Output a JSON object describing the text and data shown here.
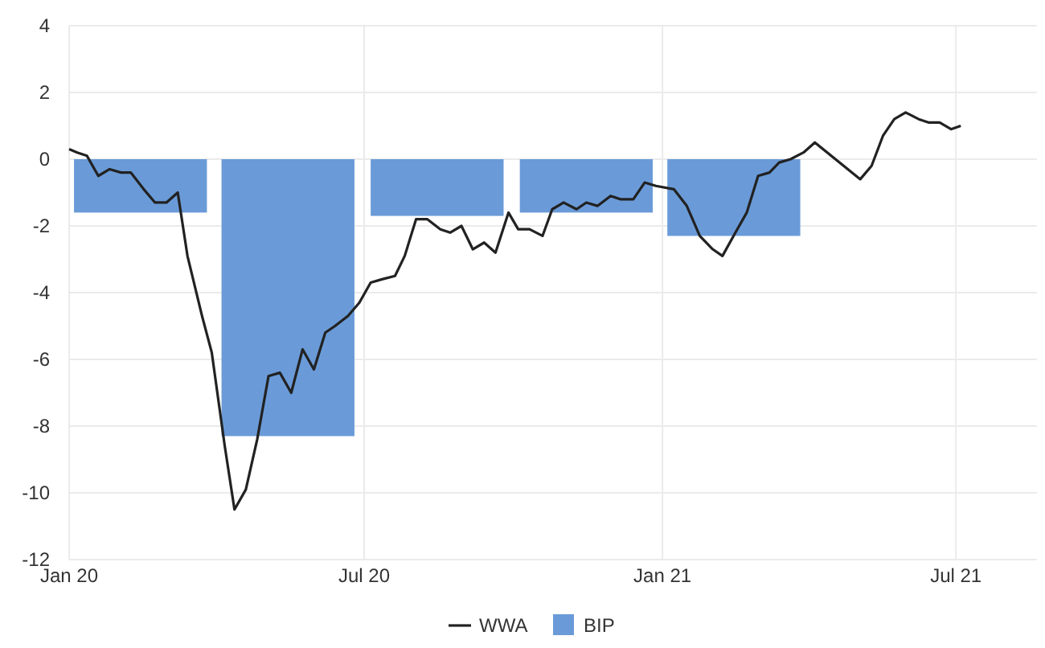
{
  "chart_data": {
    "type": "line",
    "xlim": [
      "2020-01-01",
      "2021-08-20"
    ],
    "xticks": [
      {
        "value": "2020-01-01",
        "label": "Jan 20"
      },
      {
        "value": "2020-07-01",
        "label": "Jul 20"
      },
      {
        "value": "2021-01-01",
        "label": "Jan 21"
      },
      {
        "value": "2021-07-01",
        "label": "Jul 21"
      }
    ],
    "ylim": [
      -12,
      4
    ],
    "yticks": [
      -12,
      -10,
      -8,
      -6,
      -4,
      -2,
      0,
      2,
      4
    ],
    "grid": true,
    "legend": "bottom",
    "series": [
      {
        "name": "WWA",
        "color": "#222222",
        "x": [
          "2020-01-01",
          "2020-01-06",
          "2020-01-12",
          "2020-01-19",
          "2020-01-26",
          "2020-02-02",
          "2020-02-08",
          "2020-02-16",
          "2020-02-23",
          "2020-03-01",
          "2020-03-08",
          "2020-03-14",
          "2020-03-23",
          "2020-03-29",
          "2020-04-06",
          "2020-04-12",
          "2020-04-19",
          "2020-04-26",
          "2020-05-03",
          "2020-05-10",
          "2020-05-17",
          "2020-05-24",
          "2020-05-31",
          "2020-06-07",
          "2020-06-13",
          "2020-06-21",
          "2020-06-28",
          "2020-07-05",
          "2020-07-12",
          "2020-07-20",
          "2020-07-26",
          "2020-08-02",
          "2020-08-09",
          "2020-08-17",
          "2020-08-23",
          "2020-08-30",
          "2020-09-06",
          "2020-09-13",
          "2020-09-20",
          "2020-09-28",
          "2020-10-04",
          "2020-10-11",
          "2020-10-19",
          "2020-10-25",
          "2020-11-01",
          "2020-11-09",
          "2020-11-15",
          "2020-11-22",
          "2020-11-30",
          "2020-12-06",
          "2020-12-14",
          "2020-12-21",
          "2020-12-28",
          "2021-01-08",
          "2021-01-16",
          "2021-01-24",
          "2021-02-01",
          "2021-02-07",
          "2021-02-15",
          "2021-02-22",
          "2021-03-01",
          "2021-03-08",
          "2021-03-14",
          "2021-03-21",
          "2021-03-29",
          "2021-04-05",
          "2021-05-03",
          "2021-05-10",
          "2021-05-17",
          "2021-05-24",
          "2021-05-31",
          "2021-06-08",
          "2021-06-14",
          "2021-06-21",
          "2021-06-28",
          "2021-07-04"
        ],
        "values": [
          0.3,
          0.2,
          0.1,
          -0.5,
          -0.3,
          -0.4,
          -0.4,
          -0.9,
          -1.3,
          -1.3,
          -1.0,
          -2.9,
          -4.7,
          -5.8,
          -8.6,
          -10.5,
          -9.9,
          -8.4,
          -6.5,
          -6.4,
          -7.0,
          -5.7,
          -6.3,
          -5.2,
          -5.0,
          -4.7,
          -4.3,
          -3.7,
          -3.6,
          -3.5,
          -2.9,
          -1.8,
          -1.8,
          -2.1,
          -2.2,
          -2.0,
          -2.7,
          -2.5,
          -2.8,
          -1.6,
          -2.1,
          -2.1,
          -2.3,
          -1.5,
          -1.3,
          -1.5,
          -1.3,
          -1.4,
          -1.1,
          -1.2,
          -1.2,
          -0.7,
          -0.8,
          -0.9,
          -1.4,
          -2.3,
          -2.7,
          -2.9,
          -2.2,
          -1.6,
          -0.5,
          -0.4,
          -0.1,
          0.0,
          0.2,
          0.5,
          -0.6,
          -0.2,
          0.7,
          1.2,
          1.4,
          1.2,
          1.1,
          1.1,
          0.9,
          1.0
        ]
      },
      {
        "name": "BIP",
        "type": "bar",
        "color": "#6a9bd8",
        "x": [
          "2020-02-14",
          "2020-05-15",
          "2020-08-15",
          "2020-11-15",
          "2021-02-14"
        ],
        "values": [
          -1.6,
          -8.3,
          -1.7,
          -1.6,
          -2.3
        ]
      }
    ]
  }
}
